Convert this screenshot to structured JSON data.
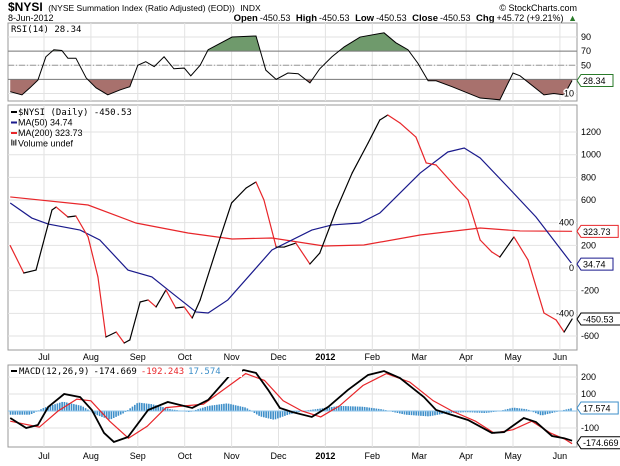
{
  "header": {
    "symbol": "$NYSI",
    "name": "(NYSE Summation Index (Ratio Adjusted) (EOD))",
    "exchange": "INDX",
    "watermark": "© StockCharts.com",
    "date": "8-Jun-2012",
    "open_label": "Open",
    "open": "-450.53",
    "high_label": "High",
    "high": "-450.53",
    "low_label": "Low",
    "low": "-450.53",
    "close_label": "Close",
    "close": "-450.53",
    "chg_label": "Chg",
    "chg": "+45.72 (+9.21%)",
    "chg_arrow": "▲"
  },
  "colors": {
    "price_up": "#000000",
    "price_down": "#e8262a",
    "ma50": "#1a1a8c",
    "ma200": "#e8262a",
    "rsi_over": "#6f9a6c",
    "rsi_under": "#a8716d",
    "macd": "#000000",
    "signal": "#e8262a",
    "hist": "#3e8fc9"
  },
  "x_axis": {
    "months": [
      {
        "label": "Jul",
        "m": 1
      },
      {
        "label": "Aug",
        "m": 2
      },
      {
        "label": "Sep",
        "m": 3
      },
      {
        "label": "Oct",
        "m": 4
      },
      {
        "label": "Nov",
        "m": 5
      },
      {
        "label": "Dec",
        "m": 6
      },
      {
        "label": "2012",
        "m": 7,
        "bold": true
      },
      {
        "label": "Feb",
        "m": 8
      },
      {
        "label": "Mar",
        "m": 9
      },
      {
        "label": "Apr",
        "m": 10
      },
      {
        "label": "May",
        "m": 11
      },
      {
        "label": "Jun",
        "m": 12
      }
    ]
  },
  "chart_data": [
    {
      "type": "line",
      "panel": "rsi",
      "title": "RSI(14) 28.34",
      "ylim": [
        0,
        100
      ],
      "ticks": [
        90,
        70,
        50,
        10
      ],
      "levels": {
        "overbought": 70,
        "mid": 50,
        "oversold": 30
      },
      "last_label": "28.34",
      "series": [
        {
          "name": "RSI(14)",
          "points": [
            [
              0.28,
              12.5
            ],
            [
              0.53,
              8
            ],
            [
              0.7,
              18
            ],
            [
              0.87,
              29
            ],
            [
              1.04,
              62
            ],
            [
              1.21,
              72
            ],
            [
              1.38,
              71
            ],
            [
              1.51,
              60
            ],
            [
              1.68,
              60
            ],
            [
              1.9,
              32
            ],
            [
              2.11,
              18
            ],
            [
              2.36,
              8
            ],
            [
              2.62,
              15
            ],
            [
              2.83,
              19.6
            ],
            [
              3.0,
              50
            ],
            [
              3.17,
              55
            ],
            [
              3.35,
              48
            ],
            [
              3.56,
              62
            ],
            [
              3.77,
              45
            ],
            [
              3.99,
              46
            ],
            [
              4.13,
              35
            ],
            [
              4.33,
              50
            ],
            [
              4.5,
              72
            ],
            [
              5.01,
              90
            ],
            [
              5.52,
              91.5
            ],
            [
              5.73,
              43
            ],
            [
              5.95,
              30
            ],
            [
              6.2,
              39
            ],
            [
              6.42,
              38
            ],
            [
              6.67,
              25
            ],
            [
              6.88,
              45
            ],
            [
              7.14,
              62
            ],
            [
              7.4,
              76
            ],
            [
              7.74,
              90
            ],
            [
              8.25,
              96
            ],
            [
              8.5,
              82
            ],
            [
              8.76,
              72
            ],
            [
              8.97,
              53
            ],
            [
              9.19,
              28
            ],
            [
              9.36,
              28
            ],
            [
              9.7,
              19.6
            ],
            [
              10.3,
              3.5
            ],
            [
              10.72,
              1
            ],
            [
              11.0,
              39
            ],
            [
              11.15,
              35
            ],
            [
              11.66,
              8
            ],
            [
              11.87,
              10
            ],
            [
              12.09,
              8
            ],
            [
              12.26,
              28.34
            ]
          ]
        }
      ]
    },
    {
      "type": "line",
      "panel": "price",
      "ylim": [
        -720,
        1460
      ],
      "ticks": [
        1200,
        1000,
        800,
        600,
        400,
        200,
        0,
        -200,
        -400,
        -600
      ],
      "legend": [
        {
          "label": "$NYSI (Daily) -450.53",
          "color": "#000000"
        },
        {
          "label": "MA(50) 34.74",
          "color": "#1a1a8c"
        },
        {
          "label": "MA(200) 323.73",
          "color": "#e8262a"
        },
        {
          "label": "Volume undef",
          "color": "#555555"
        }
      ],
      "last_labels": {
        "price": "-450.53",
        "ma50": "34.74",
        "ma200": "323.73"
      },
      "series": [
        {
          "name": "$NYSI",
          "points": [
            [
              0.28,
              197
            ],
            [
              0.57,
              -44
            ],
            [
              0.83,
              -18
            ],
            [
              1.17,
              512
            ],
            [
              1.26,
              538
            ],
            [
              1.51,
              450
            ],
            [
              1.68,
              459
            ],
            [
              1.94,
              274
            ],
            [
              2.15,
              -79
            ],
            [
              2.32,
              -609
            ],
            [
              2.54,
              -565
            ],
            [
              2.71,
              -662
            ],
            [
              2.83,
              -635
            ],
            [
              3.05,
              -300
            ],
            [
              3.22,
              -282
            ],
            [
              3.39,
              -344
            ],
            [
              3.6,
              -194
            ],
            [
              3.81,
              -353
            ],
            [
              3.99,
              -344
            ],
            [
              4.16,
              -441
            ],
            [
              4.33,
              -282
            ],
            [
              4.67,
              159
            ],
            [
              5.0,
              574
            ],
            [
              5.31,
              706
            ],
            [
              5.52,
              759
            ],
            [
              5.69,
              600
            ],
            [
              5.95,
              185
            ],
            [
              6.12,
              185
            ],
            [
              6.37,
              220
            ],
            [
              6.67,
              35
            ],
            [
              6.88,
              132
            ],
            [
              7.23,
              512
            ],
            [
              7.57,
              838
            ],
            [
              7.91,
              1103
            ],
            [
              8.16,
              1306
            ],
            [
              8.33,
              1350
            ],
            [
              8.59,
              1280
            ],
            [
              8.93,
              1156
            ],
            [
              9.15,
              927
            ],
            [
              9.36,
              909
            ],
            [
              9.78,
              715
            ],
            [
              10.04,
              600
            ],
            [
              10.3,
              247
            ],
            [
              10.55,
              141
            ],
            [
              10.72,
              97
            ],
            [
              11.02,
              274
            ],
            [
              11.32,
              71
            ],
            [
              11.66,
              -397
            ],
            [
              11.92,
              -459
            ],
            [
              12.09,
              -565
            ],
            [
              12.26,
              -450.53
            ]
          ]
        },
        {
          "name": "MA(50)",
          "points": [
            [
              0.28,
              574
            ],
            [
              0.74,
              441
            ],
            [
              1.09,
              388
            ],
            [
              1.77,
              335
            ],
            [
              2.19,
              247
            ],
            [
              2.79,
              -18
            ],
            [
              3.3,
              -79
            ],
            [
              3.73,
              -221
            ],
            [
              4.24,
              -388
            ],
            [
              4.5,
              -397
            ],
            [
              4.92,
              -282
            ],
            [
              5.86,
              159
            ],
            [
              6.71,
              335
            ],
            [
              7.14,
              380
            ],
            [
              7.74,
              397
            ],
            [
              8.16,
              485
            ],
            [
              9.02,
              838
            ],
            [
              9.61,
              1024
            ],
            [
              9.96,
              1059
            ],
            [
              10.3,
              971
            ],
            [
              10.89,
              715
            ],
            [
              11.49,
              450
            ],
            [
              12.26,
              34.74
            ]
          ]
        },
        {
          "name": "MA(200)",
          "points": [
            [
              0.28,
              627
            ],
            [
              1.94,
              556
            ],
            [
              2.96,
              397
            ],
            [
              4.07,
              309
            ],
            [
              5.01,
              256
            ],
            [
              5.86,
              265
            ],
            [
              6.97,
              194
            ],
            [
              7.82,
              203
            ],
            [
              9.02,
              291
            ],
            [
              10.3,
              353
            ],
            [
              11.15,
              327
            ],
            [
              12.26,
              323.73
            ]
          ]
        }
      ]
    },
    {
      "type": "line",
      "panel": "macd",
      "title": "MACD(12,26,9)",
      "values_text": {
        "macd": "-174.669",
        "signal": "-192.243",
        "hist": "17.574"
      },
      "ylim": [
        -250,
        260
      ],
      "ticks": [
        200,
        100,
        -100
      ],
      "last_labels": {
        "macd": "-174.669",
        "hist": "17.574"
      },
      "series": [
        {
          "name": "MACD",
          "points": [
            [
              0.28,
              -41
            ],
            [
              0.62,
              -100
            ],
            [
              0.87,
              -82
            ],
            [
              1.09,
              24
            ],
            [
              1.43,
              100
            ],
            [
              1.77,
              82
            ],
            [
              2.02,
              6
            ],
            [
              2.28,
              -129
            ],
            [
              2.49,
              -182
            ],
            [
              2.79,
              -153
            ],
            [
              3.22,
              6
            ],
            [
              3.64,
              53
            ],
            [
              4.16,
              18
            ],
            [
              4.5,
              65
            ],
            [
              4.97,
              212
            ],
            [
              5.26,
              241
            ],
            [
              5.52,
              224
            ],
            [
              5.78,
              124
            ],
            [
              6.03,
              18
            ],
            [
              6.29,
              -6
            ],
            [
              6.71,
              -35
            ],
            [
              7.06,
              24
            ],
            [
              7.48,
              124
            ],
            [
              7.91,
              212
            ],
            [
              8.25,
              235
            ],
            [
              8.59,
              194
            ],
            [
              9.1,
              82
            ],
            [
              9.36,
              6
            ],
            [
              10.04,
              -53
            ],
            [
              10.55,
              -129
            ],
            [
              10.81,
              -124
            ],
            [
              11.23,
              -41
            ],
            [
              11.49,
              -65
            ],
            [
              11.83,
              -147
            ],
            [
              12.09,
              -160
            ],
            [
              12.26,
              -174.669
            ]
          ]
        },
        {
          "name": "Signal",
          "points": [
            [
              0.28,
              -60
            ],
            [
              0.9,
              -95
            ],
            [
              1.3,
              0
            ],
            [
              1.7,
              70
            ],
            [
              2.0,
              60
            ],
            [
              2.4,
              -60
            ],
            [
              2.8,
              -160
            ],
            [
              3.2,
              -90
            ],
            [
              3.6,
              20
            ],
            [
              4.0,
              30
            ],
            [
              4.4,
              40
            ],
            [
              4.8,
              120
            ],
            [
              5.3,
              220
            ],
            [
              5.7,
              180
            ],
            [
              6.1,
              60
            ],
            [
              6.5,
              0
            ],
            [
              6.9,
              -35
            ],
            [
              7.3,
              30
            ],
            [
              7.8,
              150
            ],
            [
              8.3,
              220
            ],
            [
              8.8,
              170
            ],
            [
              9.3,
              60
            ],
            [
              9.7,
              0
            ],
            [
              10.2,
              -60
            ],
            [
              10.6,
              -130
            ],
            [
              11.0,
              -110
            ],
            [
              11.4,
              -60
            ],
            [
              11.8,
              -130
            ],
            [
              12.1,
              -165
            ],
            [
              12.26,
              -192.243
            ]
          ]
        },
        {
          "name": "Histogram",
          "points": [
            [
              0.28,
              -20
            ],
            [
              0.7,
              -20
            ],
            [
              1.0,
              20
            ],
            [
              1.4,
              55
            ],
            [
              1.8,
              30
            ],
            [
              2.1,
              -20
            ],
            [
              2.4,
              -50
            ],
            [
              2.7,
              -10
            ],
            [
              3.0,
              50
            ],
            [
              3.3,
              40
            ],
            [
              3.7,
              10
            ],
            [
              4.1,
              -5
            ],
            [
              4.5,
              30
            ],
            [
              4.9,
              45
            ],
            [
              5.3,
              20
            ],
            [
              5.6,
              -30
            ],
            [
              5.9,
              -50
            ],
            [
              6.2,
              -20
            ],
            [
              6.5,
              0
            ],
            [
              6.9,
              15
            ],
            [
              7.3,
              30
            ],
            [
              7.8,
              25
            ],
            [
              8.2,
              10
            ],
            [
              8.7,
              -20
            ],
            [
              9.2,
              -30
            ],
            [
              9.6,
              -10
            ],
            [
              10.0,
              -5
            ],
            [
              10.4,
              -10
            ],
            [
              10.7,
              0
            ],
            [
              11.0,
              20
            ],
            [
              11.3,
              10
            ],
            [
              11.6,
              -25
            ],
            [
              11.9,
              -5
            ],
            [
              12.26,
              17.574
            ]
          ]
        }
      ]
    }
  ]
}
